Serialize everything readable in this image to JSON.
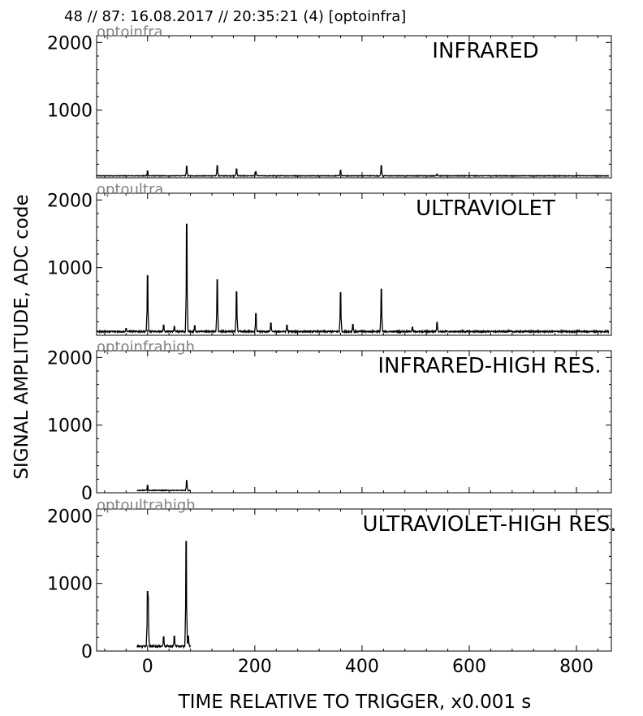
{
  "header": {
    "title": "48 // 87:   16.08.2017 // 20:35:21 (4)  [optoinfra]"
  },
  "chart_data": {
    "type": "line",
    "xlabel": "TIME RELATIVE TO TRIGGER,   x0.001 s",
    "ylabel": "SIGNAL AMPLITUDE,  ADC code",
    "xlim": [
      -95,
      865
    ],
    "x_ticks": [
      0,
      200,
      400,
      600,
      800
    ],
    "x_tick_labels": [
      "0",
      "200",
      "400",
      "600",
      "800"
    ],
    "ylim": [
      0,
      2100
    ],
    "grid": false,
    "line_color": "#000000",
    "panels": [
      {
        "tag": "optoinfra",
        "title": "INFRARED",
        "y_tick_labels": [
          "1000",
          "2000"
        ],
        "x_range": [
          -95,
          860
        ],
        "baseline": 25,
        "noise": 8,
        "peaks": [
          [
            0,
            100
          ],
          [
            73,
            170
          ],
          [
            130,
            180
          ],
          [
            166,
            130
          ],
          [
            202,
            90
          ],
          [
            360,
            110
          ],
          [
            436,
            180
          ],
          [
            540,
            55
          ]
        ]
      },
      {
        "tag": "optoultra",
        "title": "ULTRAVIOLET",
        "y_tick_labels": [
          "1000",
          "2000"
        ],
        "x_range": [
          -95,
          860
        ],
        "baseline": 45,
        "noise": 20,
        "peaks": [
          [
            0,
            880
          ],
          [
            73,
            1640
          ],
          [
            130,
            820
          ],
          [
            166,
            640
          ],
          [
            202,
            320
          ],
          [
            230,
            180
          ],
          [
            260,
            150
          ],
          [
            360,
            630
          ],
          [
            383,
            160
          ],
          [
            436,
            680
          ],
          [
            494,
            120
          ],
          [
            540,
            190
          ],
          [
            -40,
            100
          ],
          [
            30,
            150
          ],
          [
            50,
            130
          ],
          [
            88,
            140
          ]
        ]
      },
      {
        "tag": "optoinfrahigh",
        "title": "INFRARED-HIGH RES.",
        "y_tick_labels": [
          "0",
          "1000",
          "2000"
        ],
        "x_range": [
          -20,
          80
        ],
        "baseline": 30,
        "noise": 10,
        "peaks": [
          [
            0,
            110
          ],
          [
            73,
            180
          ]
        ]
      },
      {
        "tag": "optoultrahigh",
        "title": "ULTRAVIOLET-HIGH RES.",
        "y_tick_labels": [
          "0",
          "1000",
          "2000"
        ],
        "x_range": [
          -20,
          80
        ],
        "baseline": 60,
        "noise": 22,
        "peaks": [
          [
            0,
            880
          ],
          [
            1,
            800
          ],
          [
            30,
            210
          ],
          [
            50,
            220
          ],
          [
            72,
            1620
          ],
          [
            73,
            300
          ],
          [
            76,
            220
          ]
        ]
      }
    ]
  }
}
